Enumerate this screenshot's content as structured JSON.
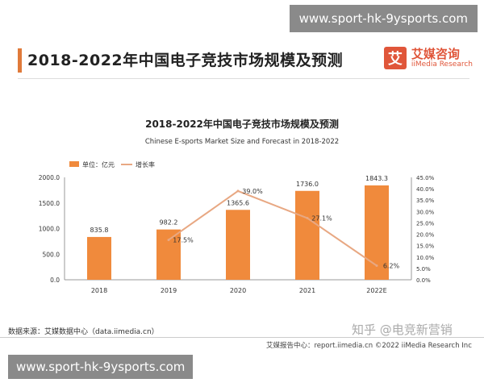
{
  "watermark": {
    "top": "www.sport-hk-9ysports.com",
    "bottom": "www.sport-hk-9ysports.com"
  },
  "header": {
    "title": "2018-2022年中国电子竞技市场规模及预测",
    "logo_mark": "艾",
    "logo_cn": "艾媒咨询",
    "logo_en": "iiMedia Research"
  },
  "chart_data": {
    "type": "bar",
    "title": "2018-2022年中国电子竞技市场规模及预测",
    "subtitle": "Chinese E-sports Market Size and Forecast in 2018-2022",
    "categories": [
      "2018",
      "2019",
      "2020",
      "2021",
      "2022E"
    ],
    "series": [
      {
        "name": "单位：亿元",
        "type": "bar",
        "values": [
          835.8,
          982.2,
          1365.6,
          1736.0,
          1843.3
        ],
        "labels": [
          "835.8",
          "982.2",
          "1365.6",
          "1736.0",
          "1843.3"
        ],
        "color": "#f08a3c"
      },
      {
        "name": "增长率",
        "type": "line",
        "values": [
          null,
          17.5,
          39.0,
          27.1,
          6.2
        ],
        "labels": [
          "",
          "17.5%",
          "39.0%",
          "27.1%",
          "6.2%"
        ],
        "color": "#e8a883"
      }
    ],
    "y_left": {
      "range": [
        0,
        2000
      ],
      "ticks": [
        "0.0",
        "500.0",
        "1000.0",
        "1500.0",
        "2000.0"
      ],
      "tick_values": [
        0,
        500,
        1000,
        1500,
        2000
      ]
    },
    "y_right": {
      "range": [
        0,
        45
      ],
      "ticks": [
        "0.0%",
        "5.0%",
        "10.0%",
        "15.0%",
        "20.0%",
        "25.0%",
        "30.0%",
        "35.0%",
        "40.0%",
        "45.0%"
      ],
      "tick_values": [
        0,
        5,
        10,
        15,
        20,
        25,
        30,
        35,
        40,
        45
      ]
    },
    "legend": "top-left",
    "grid": false
  },
  "source": "数据来源：艾媒数据中心（data.iimedia.cn）",
  "zhihu": "知乎 @电竞新营销",
  "footer": "艾媒报告中心：report.iimedia.cn   ©2022  iiMedia Research  Inc"
}
